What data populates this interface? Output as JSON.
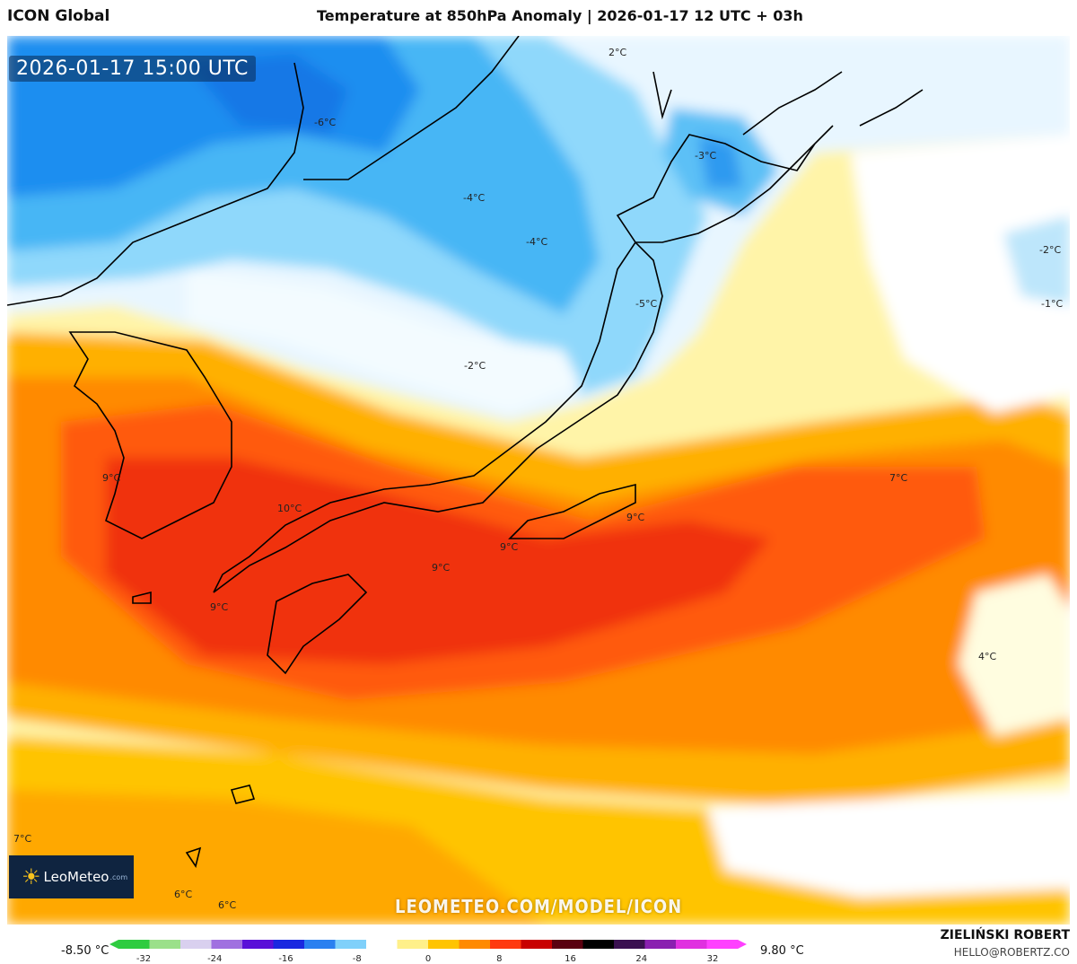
{
  "header": {
    "model": "ICON Global",
    "title": "Temperature at 850hPa Anomaly | 2026-01-17 12 UTC + 03h"
  },
  "map": {
    "valid_time": "2026-01-17 15:00 UTC",
    "watermark": "LEOMETEO.COM/MODEL/ICON",
    "logo": {
      "name": "LeoMeteo",
      "domain": ".com"
    },
    "contour_labels": [
      "2°C",
      "-6°C",
      "-3°C",
      "-4°C",
      "-4°C",
      "-2°C",
      "-1°C",
      "-5°C",
      "-2°C",
      "7°C",
      "9°C",
      "10°C",
      "9°C",
      "9°C",
      "9°C",
      "9°C",
      "4°C",
      "7°C",
      "6°C",
      "6°C"
    ]
  },
  "legend": {
    "min_label": "-8.50 °C",
    "max_label": "9.80 °C",
    "ticks": [
      "-32",
      "-24",
      "-16",
      "-8",
      "0",
      "8",
      "16",
      "24",
      "32"
    ],
    "colors": [
      "#2ecc40",
      "#9be08a",
      "#d9d0ef",
      "#a070e0",
      "#5a10d8",
      "#1a28e0",
      "#2a80f0",
      "#7fd0fa",
      "#ffffff",
      "#fff08a",
      "#ffc400",
      "#ff8a00",
      "#ff3a10",
      "#c80000",
      "#5a0010",
      "#000000",
      "#3a1050",
      "#8a20b0",
      "#e030e0",
      "#ff40ff"
    ]
  },
  "credits": {
    "author": "ZIELIŃSKI ROBERT",
    "email": "HELLO@ROBERTZ.CO"
  }
}
